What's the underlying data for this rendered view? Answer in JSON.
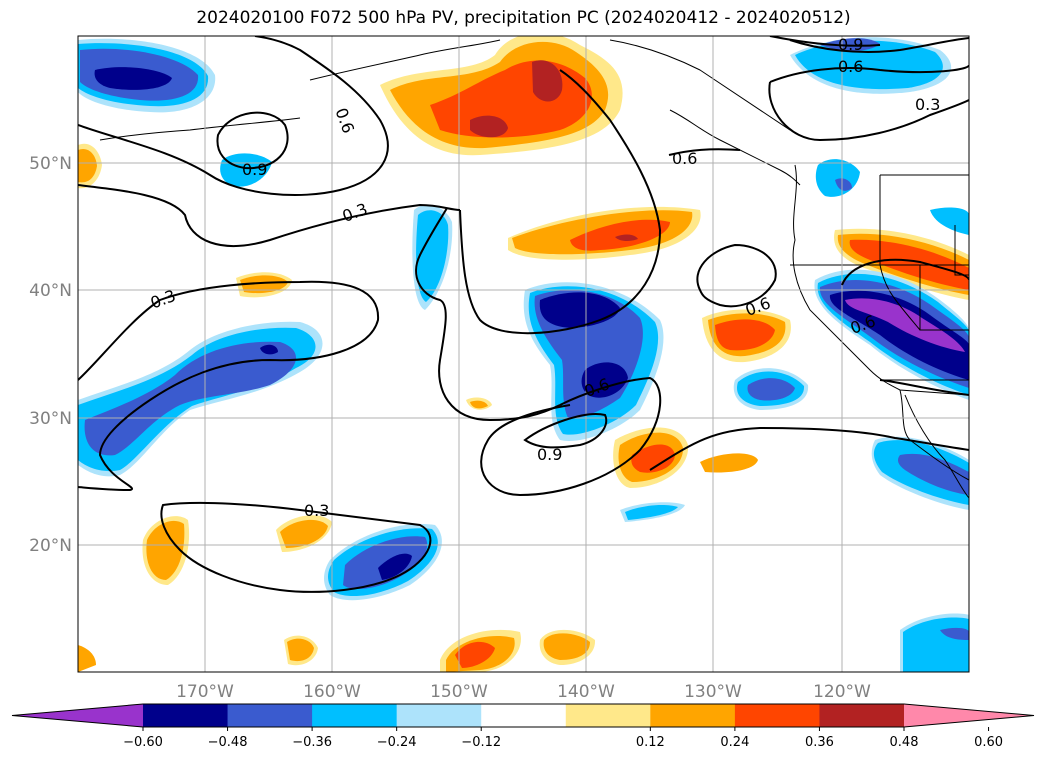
{
  "title": "2024020100 F072 500 hPa PV, precipitation PC (2024020412 - 2024020512)",
  "lat_labels": [
    "50°N",
    "40°N",
    "30°N",
    "20°N"
  ],
  "lon_labels": [
    "170°W",
    "160°W",
    "150°W",
    "140°W",
    "130°W",
    "120°W"
  ],
  "contour_labels": [
    "0.9",
    "0.6",
    "0.3",
    "0.6",
    "0.9",
    "0.3",
    "0.6",
    "0.3",
    "0.6",
    "0.9",
    "0.3",
    "0.6",
    "0.6"
  ],
  "colorbar": {
    "ticks": [
      "−0.60",
      "−0.48",
      "−0.36",
      "−0.24",
      "−0.12",
      "0.12",
      "0.24",
      "0.36",
      "0.48",
      "0.60"
    ],
    "colors": [
      "#9933cc",
      "#00008b",
      "#3a5bcf",
      "#00bfff",
      "#ade3fb",
      "#ffffff",
      "#ffe88a",
      "#ffa500",
      "#ff4500",
      "#b22222",
      "#ff88aa"
    ]
  },
  "colors": {
    "c_n60": "#9933cc",
    "c_n48": "#00008b",
    "c_n36": "#3a5bcf",
    "c_n24": "#00bfff",
    "c_n12": "#ade3fb",
    "c_p12": "#ffe88a",
    "c_p24": "#ffa500",
    "c_p36": "#ff4500",
    "c_p48": "#b22222",
    "c_p60": "#ff88aa",
    "grid": "#b0b0b0",
    "axis_text": "#808080"
  }
}
